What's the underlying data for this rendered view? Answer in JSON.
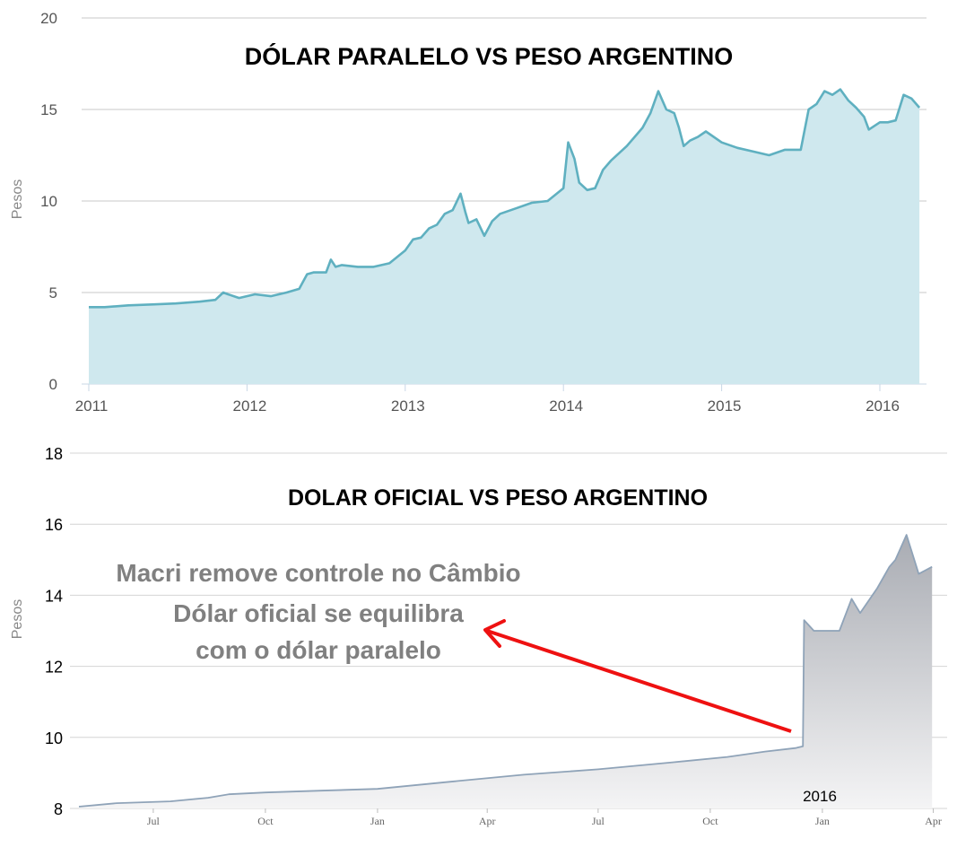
{
  "chart_data": [
    {
      "type": "area",
      "title": "DÓLAR PARALELO VS PESO ARGENTINO",
      "ylabel": "Pesos",
      "xlabel": "",
      "ylim": [
        0,
        20
      ],
      "yticks": [
        0,
        5,
        10,
        15,
        20
      ],
      "xticks": [
        "2011",
        "2012",
        "2013",
        "2014",
        "2015",
        "2016"
      ],
      "grid": true,
      "colors": {
        "line": "#5fb0c0",
        "fill": "#cfe8ee"
      },
      "series": [
        {
          "x": [
            2011.0,
            2011.1,
            2011.25,
            2011.4,
            2011.55,
            2011.7,
            2011.8,
            2011.85,
            2011.88,
            2011.95,
            2012.05,
            2012.15,
            2012.25,
            2012.33,
            2012.38,
            2012.42,
            2012.5,
            2012.53,
            2012.56,
            2012.6,
            2012.7,
            2012.8,
            2012.9,
            2013.0,
            2013.05,
            2013.1,
            2013.15,
            2013.2,
            2013.25,
            2013.3,
            2013.35,
            2013.38,
            2013.4,
            2013.45,
            2013.5,
            2013.55,
            2013.6,
            2013.7,
            2013.8,
            2013.9,
            2014.0,
            2014.03,
            2014.07,
            2014.1,
            2014.15,
            2014.2,
            2014.25,
            2014.3,
            2014.4,
            2014.5,
            2014.55,
            2014.6,
            2014.65,
            2014.7,
            2014.73,
            2014.76,
            2014.8,
            2014.85,
            2014.9,
            2015.0,
            2015.1,
            2015.2,
            2015.3,
            2015.4,
            2015.5,
            2015.55,
            2015.6,
            2015.65,
            2015.7,
            2015.75,
            2015.8,
            2015.85,
            2015.9,
            2015.93,
            2016.0,
            2016.05,
            2016.1,
            2016.15,
            2016.2,
            2016.25
          ],
          "values": [
            4.2,
            4.2,
            4.3,
            4.35,
            4.4,
            4.5,
            4.6,
            5.0,
            4.9,
            4.7,
            4.9,
            4.8,
            5.0,
            5.2,
            6.0,
            6.1,
            6.1,
            6.8,
            6.4,
            6.5,
            6.4,
            6.4,
            6.6,
            7.3,
            7.9,
            8.0,
            8.5,
            8.7,
            9.3,
            9.5,
            10.4,
            9.4,
            8.8,
            9.0,
            8.1,
            8.9,
            9.3,
            9.6,
            9.9,
            10.0,
            10.7,
            13.2,
            12.3,
            11.0,
            10.6,
            10.7,
            11.7,
            12.2,
            13.0,
            14.0,
            14.8,
            16.0,
            15.0,
            14.8,
            14.0,
            13.0,
            13.3,
            13.5,
            13.8,
            13.2,
            12.9,
            12.7,
            12.5,
            12.8,
            12.8,
            15.0,
            15.3,
            16.0,
            15.8,
            16.1,
            15.5,
            15.1,
            14.6,
            13.9,
            14.3,
            14.3,
            14.4,
            15.8,
            15.6,
            15.1
          ]
        }
      ]
    },
    {
      "type": "area",
      "title": "DOLAR OFICIAL VS PESO ARGENTINO",
      "ylabel": "Pesos",
      "xlabel": "",
      "ylim": [
        8,
        18
      ],
      "yticks": [
        8,
        10,
        12,
        14,
        16,
        18
      ],
      "xticks": [
        "Jul",
        "Oct",
        "Jan",
        "Apr",
        "Jul",
        "Oct",
        "Jan",
        "Apr"
      ],
      "year_label": "2016",
      "grid": true,
      "colors": {
        "line": "#8fa3b8",
        "fill_top": "#a9acb3",
        "fill_bottom": "#f2f2f2"
      },
      "series": [
        {
          "x": [
            "2014-05-01",
            "2014-06-01",
            "2014-07-15",
            "2014-08-15",
            "2014-09-01",
            "2014-10-01",
            "2014-11-15",
            "2015-01-01",
            "2015-03-01",
            "2015-05-01",
            "2015-07-01",
            "2015-09-01",
            "2015-10-15",
            "2015-11-15",
            "2015-12-10",
            "2015-12-16",
            "2015-12-17",
            "2015-12-25",
            "2016-01-15",
            "2016-01-25",
            "2016-02-01",
            "2016-02-15",
            "2016-02-25",
            "2016-03-01",
            "2016-03-10",
            "2016-03-20",
            "2016-03-31"
          ],
          "values": [
            8.05,
            8.15,
            8.2,
            8.3,
            8.4,
            8.45,
            8.5,
            8.55,
            8.75,
            8.95,
            9.1,
            9.3,
            9.45,
            9.6,
            9.7,
            9.75,
            13.3,
            13.0,
            13.0,
            13.9,
            13.5,
            14.2,
            14.8,
            15.0,
            15.7,
            14.6,
            14.8
          ]
        }
      ],
      "annotation": {
        "lines": [
          "Macri remove controle no Câmbio",
          "Dólar oficial se equilibra",
          "com o dólar paralelo"
        ],
        "arrow_color": "#ee1111"
      }
    }
  ]
}
